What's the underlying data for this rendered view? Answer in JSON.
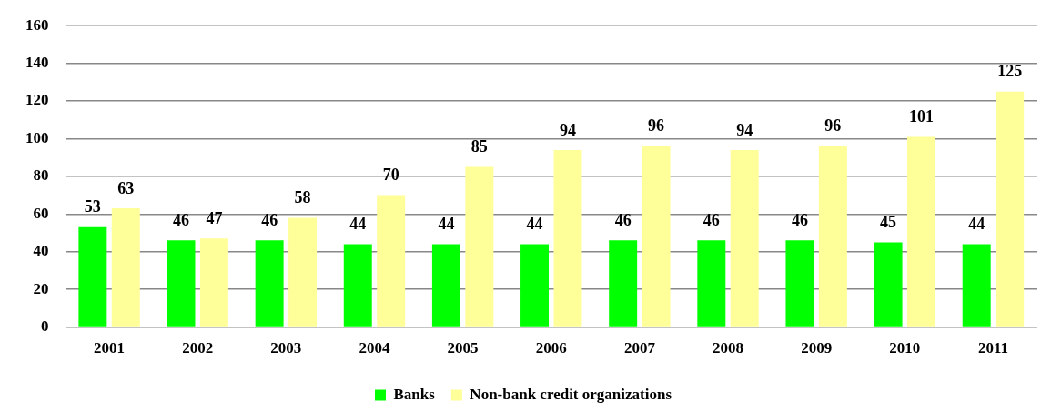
{
  "chart_data": {
    "type": "bar",
    "categories": [
      "2001",
      "2002",
      "2003",
      "2004",
      "2005",
      "2006",
      "2007",
      "2008",
      "2009",
      "2010",
      "2011"
    ],
    "series": [
      {
        "name": "Banks",
        "color": "#00ff00",
        "values": [
          53,
          46,
          46,
          44,
          44,
          44,
          46,
          46,
          46,
          45,
          44
        ]
      },
      {
        "name": "Non-bank credit organizations",
        "color": "#ffff99",
        "values": [
          63,
          47,
          58,
          70,
          85,
          94,
          96,
          94,
          96,
          101,
          125
        ]
      }
    ],
    "ylim": [
      0,
      160
    ],
    "yticks": [
      0,
      20,
      40,
      60,
      80,
      100,
      120,
      140,
      160
    ],
    "grid": "y",
    "legend": "bottom",
    "data_labels": true
  }
}
